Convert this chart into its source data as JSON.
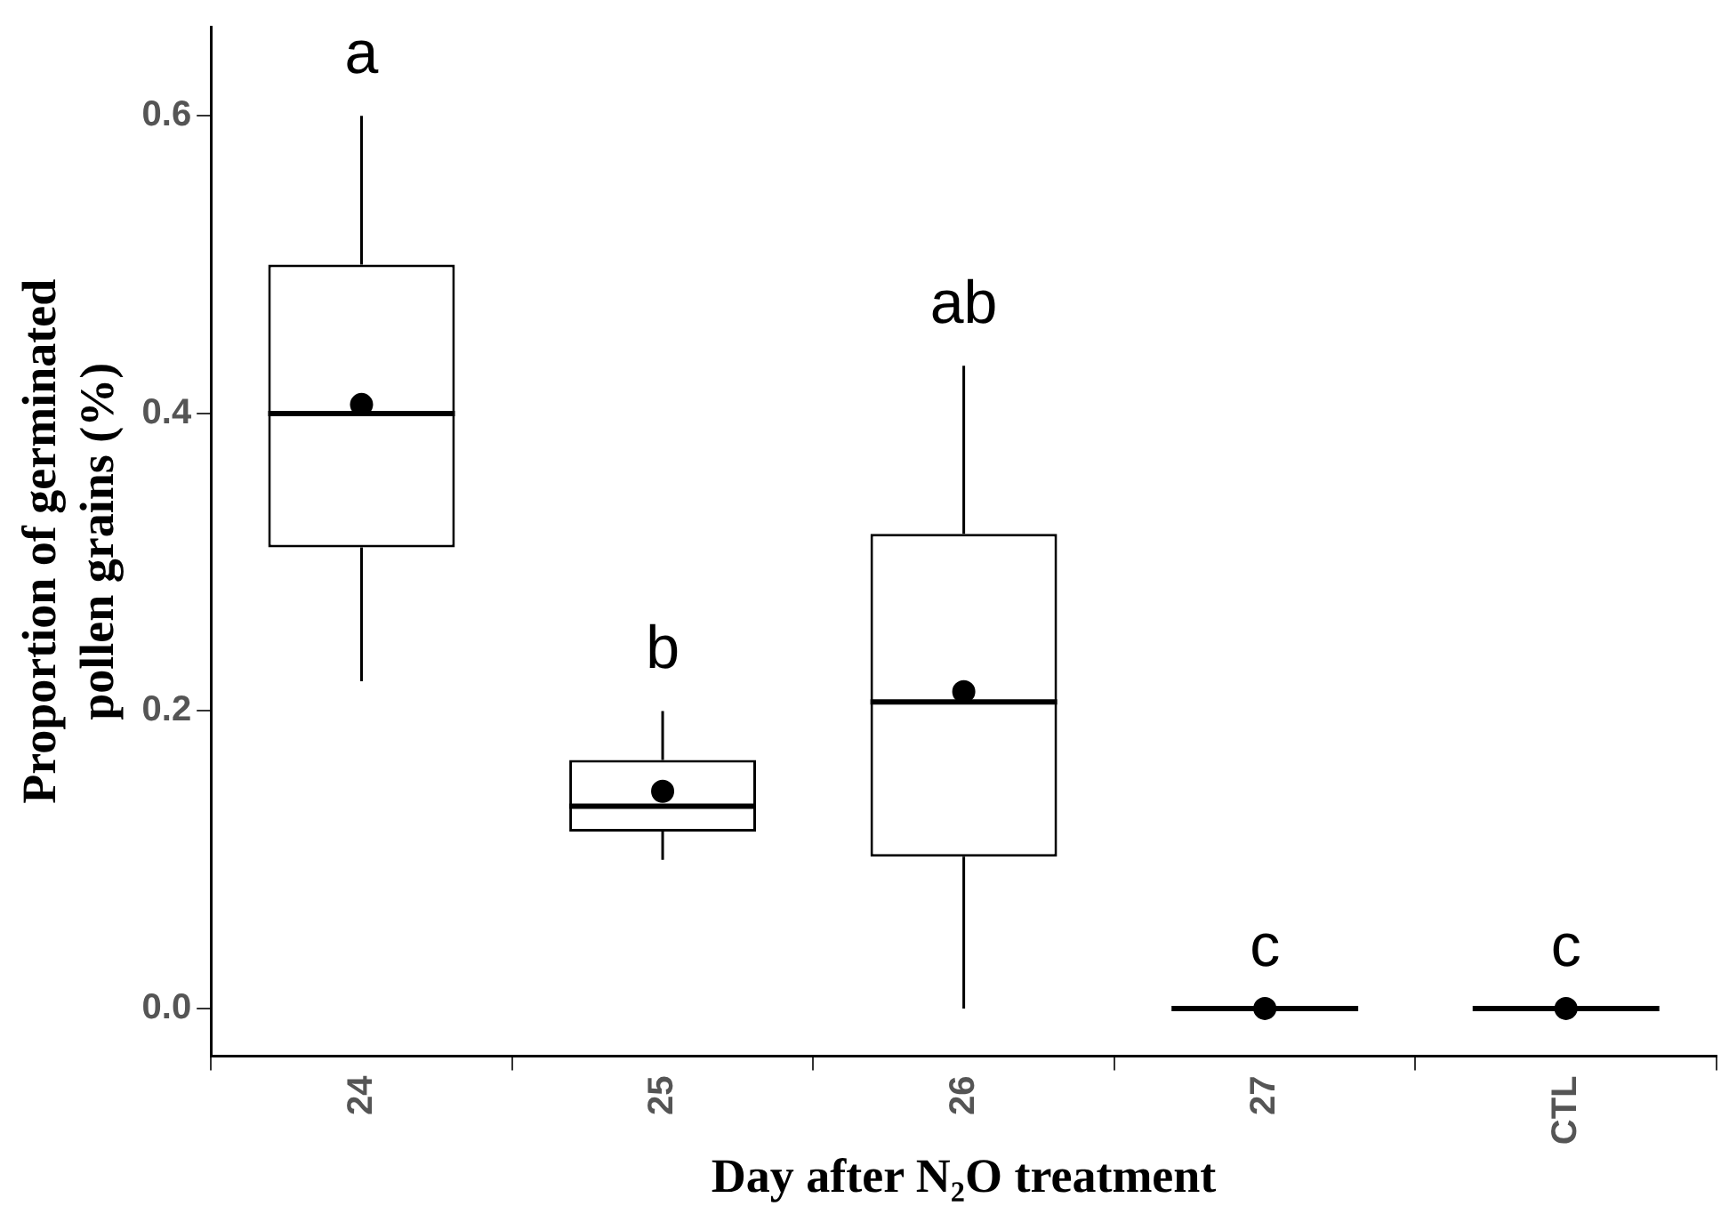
{
  "chart_data": {
    "type": "box",
    "xlabel": "Day after N₂O treatment",
    "ylabel": "Proportion of germinated pollen grains (%)",
    "categories": [
      "24",
      "25",
      "26",
      "27",
      "CTL"
    ],
    "boxes": [
      {
        "low": 0.22,
        "q1": 0.31,
        "median": 0.4,
        "q3": 0.5,
        "high": 0.6,
        "mean": 0.406
      },
      {
        "low": 0.1,
        "q1": 0.119,
        "median": 0.136,
        "q3": 0.167,
        "high": 0.2,
        "mean": 0.146
      },
      {
        "low": 0,
        "q1": 0.102,
        "median": 0.206,
        "q3": 0.319,
        "high": 0.432,
        "mean": 0.213
      },
      {
        "low": 0,
        "q1": 0,
        "median": 0,
        "q3": 0,
        "high": 0,
        "mean": 0
      },
      {
        "low": 0,
        "q1": 0,
        "median": 0,
        "q3": 0,
        "high": 0,
        "mean": 0
      }
    ],
    "color": "#000000",
    "ylim": [
      -0.032,
      0.66
    ],
    "yticks": [
      {
        "value": 0,
        "label": "0.0"
      },
      0.2,
      0.4,
      0.6
    ],
    "grid": false,
    "legend": false,
    "annotations": [
      "a",
      "b",
      "ab",
      "c",
      "c"
    ]
  }
}
